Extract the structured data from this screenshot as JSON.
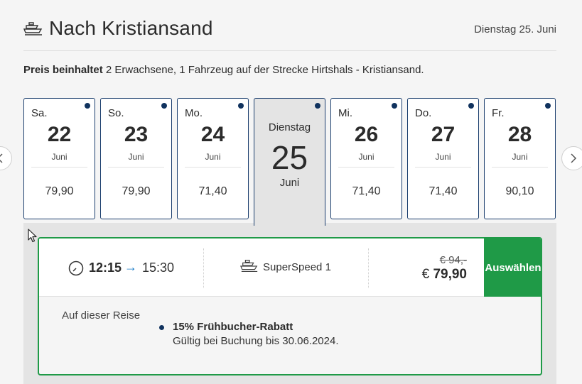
{
  "header": {
    "title": "Nach Kristiansand",
    "date": "Dienstag 25. Juni",
    "icon": "ship-icon"
  },
  "subline": {
    "bold": "Preis beinhaltet",
    "text": " 2 Erwachsene, 1 Fahrzeug auf der Strecke Hirtshals - Kristiansand."
  },
  "days": [
    {
      "dow": "Sa.",
      "num": "22",
      "month": "Juni",
      "price": "79,90"
    },
    {
      "dow": "So.",
      "num": "23",
      "month": "Juni",
      "price": "79,90"
    },
    {
      "dow": "Mo.",
      "num": "24",
      "month": "Juni",
      "price": "71,40"
    },
    {
      "dow": "Dienstag",
      "num": "25",
      "month": "Juni",
      "selected": true
    },
    {
      "dow": "Mi.",
      "num": "26",
      "month": "Juni",
      "price": "71,40"
    },
    {
      "dow": "Do.",
      "num": "27",
      "month": "Juni",
      "price": "71,40"
    },
    {
      "dow": "Fr.",
      "num": "28",
      "month": "Juni",
      "price": "90,10"
    }
  ],
  "departure": {
    "dep_time": "12:15",
    "arrow": "→",
    "arr_time": "15:30",
    "vessel": "SuperSpeed 1",
    "old_price": "€ 94,-",
    "price_currency": "€ ",
    "price_value": "79,90",
    "select_label": "Auswählen",
    "trip_label": "Auf dieser Reise",
    "discount_title": "15% Frühbucher-Rabatt",
    "discount_note": "Gültig bei Buchung bis 30.06.2024."
  },
  "colors": {
    "accent_green": "#1f9a47",
    "navy": "#10325e",
    "arrow_blue": "#1478c7"
  }
}
